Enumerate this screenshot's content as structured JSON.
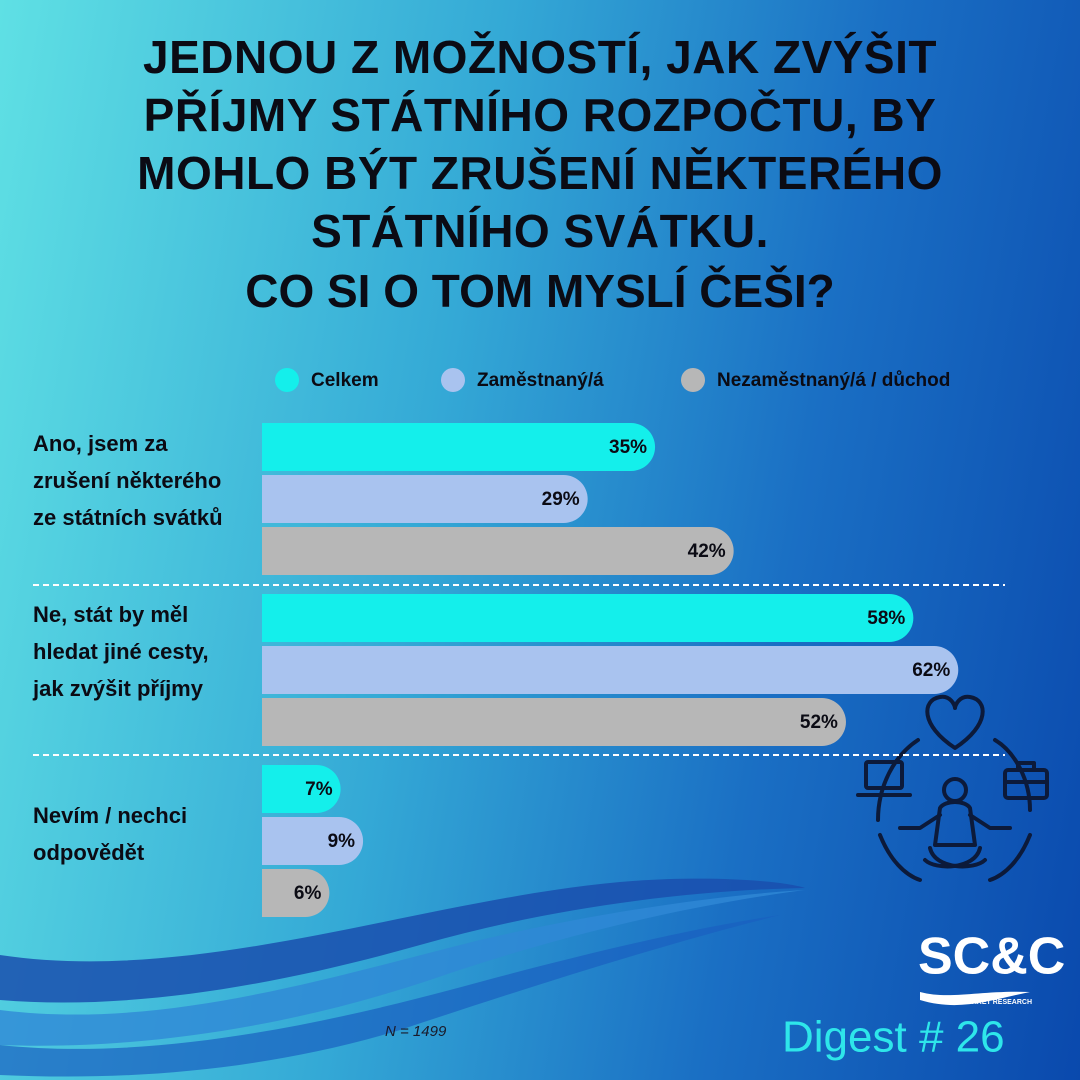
{
  "chart_data": {
    "type": "hbar",
    "title": "JEDNOU Z MOŽNOSTÍ, JAK ZVÝŠIT PŘÍJMY STÁTNÍHO ROZPOČTU, BY MOHLO BÝT ZRUŠENÍ NĚKTERÉHO STÁTNÍHO SVÁTKU.",
    "subtitle": "CO SI O TOM MYSLÍ ČEŠI?",
    "categories": [
      "Ano, jsem za zrušení některého ze státních svátků",
      "Ne, stát by měl hledat jiné cesty, jak zvýšit příjmy",
      "Nevím / nechci odpovědět"
    ],
    "series": [
      {
        "name": "Celkem",
        "color": "#14efeb",
        "values": [
          35,
          58,
          7
        ],
        "value_labels": [
          "35%",
          "58%",
          "7%"
        ]
      },
      {
        "name": "Zaměstnaný/á",
        "color": "#a9c3ef",
        "values": [
          29,
          62,
          9
        ],
        "value_labels": [
          "29%",
          "62%",
          "9%"
        ]
      },
      {
        "name": "Nezaměstnaný/á / důchod",
        "color": "#b7b7b7",
        "values": [
          42,
          52,
          6
        ],
        "value_labels": [
          "42%",
          "52%",
          "6%"
        ]
      }
    ],
    "legend": "top"
  },
  "footnote": "N  = 1499",
  "brand": {
    "name": "SC&C",
    "tagline": "MARKET RESEARCH"
  },
  "edition": "Digest # 26"
}
